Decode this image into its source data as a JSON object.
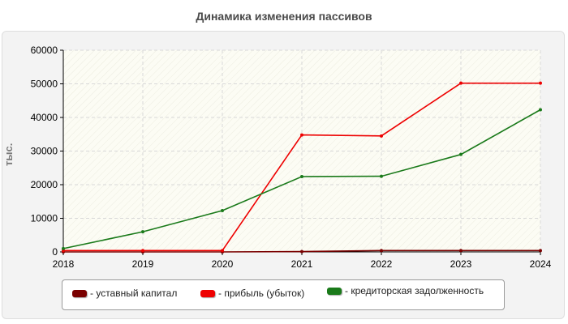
{
  "chart_data": {
    "type": "line",
    "title": "Динамика изменения пассивов",
    "ylabel": "тыс.",
    "xlabel": "",
    "x": [
      "2018",
      "2019",
      "2020",
      "2021",
      "2022",
      "2023",
      "2024"
    ],
    "ylim": [
      0,
      60000
    ],
    "yticks": [
      "0",
      "10000",
      "20000",
      "30000",
      "40000",
      "50000",
      "60000"
    ],
    "grid": true,
    "legend_position": "bottom",
    "series": [
      {
        "name": "- уставный капитал",
        "color": "#7a0000",
        "values": [
          0,
          0,
          0,
          100,
          400,
          400,
          400
        ]
      },
      {
        "name": "- прибыль (убыток)",
        "color": "#ee0000",
        "values": [
          400,
          400,
          400,
          34800,
          34500,
          50200,
          50200
        ]
      },
      {
        "name": "- кредиторская задолженность",
        "color": "#1a7a1a",
        "values": [
          1000,
          6000,
          12300,
          22400,
          22500,
          29000,
          42300
        ]
      }
    ]
  }
}
